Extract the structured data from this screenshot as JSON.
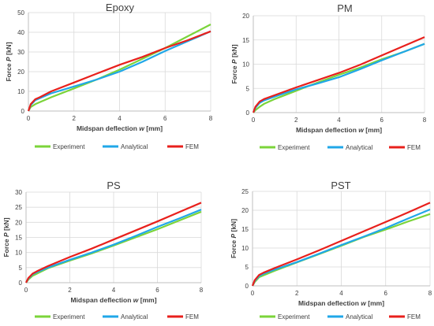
{
  "colors": {
    "experiment": "#7bd43a",
    "analytical": "#20a7e8",
    "fem": "#e8201c",
    "grid": "#d9d9d9",
    "axis": "#bfbfbf",
    "text": "#404040"
  },
  "legend_labels": [
    "Experiment",
    "Analytical",
    "FEM"
  ],
  "chart_data": [
    {
      "type": "line",
      "title": "Epoxy",
      "xlabel": "Midspan deflection w [mm]",
      "ylabel": "Force P [kN]",
      "xlim": [
        0,
        8
      ],
      "ylim": [
        0,
        50
      ],
      "xticks": [
        0,
        2,
        4,
        6,
        8
      ],
      "yticks": [
        0,
        10,
        20,
        30,
        40,
        50
      ],
      "grid": true,
      "legend": "bottom",
      "series": [
        {
          "name": "Experiment",
          "x": [
            0,
            0.1,
            0.3,
            0.5,
            1,
            2,
            3,
            4,
            5,
            6,
            7,
            8
          ],
          "y": [
            0,
            2,
            3.5,
            4.5,
            7,
            11.5,
            16,
            21,
            26.5,
            32,
            38,
            44
          ]
        },
        {
          "name": "Analytical",
          "x": [
            0,
            0.1,
            0.3,
            0.5,
            1,
            2,
            3,
            4,
            5,
            6,
            7,
            8
          ],
          "y": [
            0,
            3,
            5.5,
            6.5,
            9,
            12.5,
            16,
            20,
            25,
            30.5,
            35.5,
            40.5
          ]
        },
        {
          "name": "FEM",
          "x": [
            0,
            0.1,
            0.3,
            0.5,
            1,
            2,
            3,
            4,
            5,
            6,
            7,
            8
          ],
          "y": [
            0,
            3.5,
            6,
            7,
            10,
            14.5,
            19,
            23.5,
            27.5,
            32,
            36,
            40.5
          ]
        }
      ]
    },
    {
      "type": "line",
      "title": "PM",
      "xlabel": "Midspan deflection w [mm]",
      "ylabel": "Force P [kN]",
      "xlim": [
        0,
        8
      ],
      "ylim": [
        0,
        20
      ],
      "xticks": [
        0,
        2,
        4,
        6,
        8
      ],
      "yticks": [
        0,
        5,
        10,
        15,
        20
      ],
      "grid": true,
      "legend": "bottom",
      "series": [
        {
          "name": "Experiment",
          "x": [
            0,
            0.1,
            0.3,
            0.5,
            1,
            2,
            3,
            4,
            5,
            6,
            7,
            8
          ],
          "y": [
            0,
            0.5,
            1.2,
            1.8,
            2.8,
            4.5,
            6.2,
            7.8,
            9.3,
            11,
            12.5,
            14.2
          ]
        },
        {
          "name": "Analytical",
          "x": [
            0,
            0.1,
            0.3,
            0.5,
            1,
            2,
            3,
            4,
            5,
            6,
            7,
            8
          ],
          "y": [
            0,
            1,
            2,
            2.5,
            3.3,
            4.8,
            6,
            7.3,
            9,
            10.8,
            12.5,
            14.2
          ]
        },
        {
          "name": "FEM",
          "x": [
            0,
            0.1,
            0.3,
            0.5,
            1,
            2,
            3,
            4,
            5,
            6,
            7,
            8
          ],
          "y": [
            0,
            1.2,
            2.3,
            2.8,
            3.6,
            5.2,
            6.7,
            8.2,
            9.9,
            11.8,
            13.7,
            15.6
          ]
        }
      ]
    },
    {
      "type": "line",
      "title": "PS",
      "xlabel": "Midspan deflection w [mm]",
      "ylabel": "Force P [kN]",
      "xlim": [
        0,
        8
      ],
      "ylim": [
        0,
        30
      ],
      "xticks": [
        0,
        2,
        4,
        6,
        8
      ],
      "yticks": [
        0,
        5,
        10,
        15,
        20,
        25,
        30
      ],
      "grid": true,
      "legend": "bottom",
      "series": [
        {
          "name": "Experiment",
          "x": [
            0,
            0.1,
            0.3,
            0.5,
            1,
            2,
            3,
            4,
            5,
            6,
            7,
            8
          ],
          "y": [
            0,
            1,
            2.3,
            3,
            4.8,
            7.3,
            9.7,
            12.3,
            15,
            17.7,
            20.6,
            23.5
          ]
        },
        {
          "name": "Analytical",
          "x": [
            0,
            0.1,
            0.3,
            0.5,
            1,
            2,
            3,
            4,
            5,
            6,
            7,
            8
          ],
          "y": [
            0,
            1.3,
            2.8,
            3.5,
            5,
            7.6,
            10,
            12.6,
            15.5,
            18.5,
            21.3,
            24.2
          ]
        },
        {
          "name": "FEM",
          "x": [
            0,
            0.1,
            0.3,
            0.5,
            1,
            2,
            3,
            4,
            5,
            6,
            7,
            8
          ],
          "y": [
            0,
            1.5,
            3,
            3.8,
            5.5,
            8.5,
            11.3,
            14.3,
            17.3,
            20.3,
            23.4,
            26.5
          ]
        }
      ]
    },
    {
      "type": "line",
      "title": "PST",
      "xlabel": "Midspan deflection w [mm]",
      "ylabel": "Force P [kN]",
      "xlim": [
        0,
        8
      ],
      "ylim": [
        0,
        25
      ],
      "xticks": [
        0,
        2,
        4,
        6,
        8
      ],
      "yticks": [
        0,
        5,
        10,
        15,
        20,
        25
      ],
      "grid": true,
      "legend": "bottom",
      "series": [
        {
          "name": "Experiment",
          "x": [
            0,
            0.1,
            0.3,
            0.5,
            1,
            2,
            3,
            4,
            5,
            6,
            7,
            8
          ],
          "y": [
            0,
            1,
            2.3,
            2.8,
            4,
            6.2,
            8.4,
            10.6,
            12.9,
            14.9,
            17,
            19
          ]
        },
        {
          "name": "Analytical",
          "x": [
            0,
            0.1,
            0.3,
            0.5,
            1,
            2,
            3,
            4,
            5,
            6,
            7,
            8
          ],
          "y": [
            0,
            1.3,
            2.6,
            3.2,
            4.3,
            6.3,
            8.5,
            10.8,
            13,
            15.3,
            17.8,
            20.2
          ]
        },
        {
          "name": "FEM",
          "x": [
            0,
            0.1,
            0.3,
            0.5,
            1,
            2,
            3,
            4,
            5,
            6,
            7,
            8
          ],
          "y": [
            0,
            1.5,
            2.9,
            3.5,
            4.7,
            7,
            9.4,
            11.9,
            14.4,
            16.9,
            19.4,
            22
          ]
        }
      ]
    }
  ]
}
